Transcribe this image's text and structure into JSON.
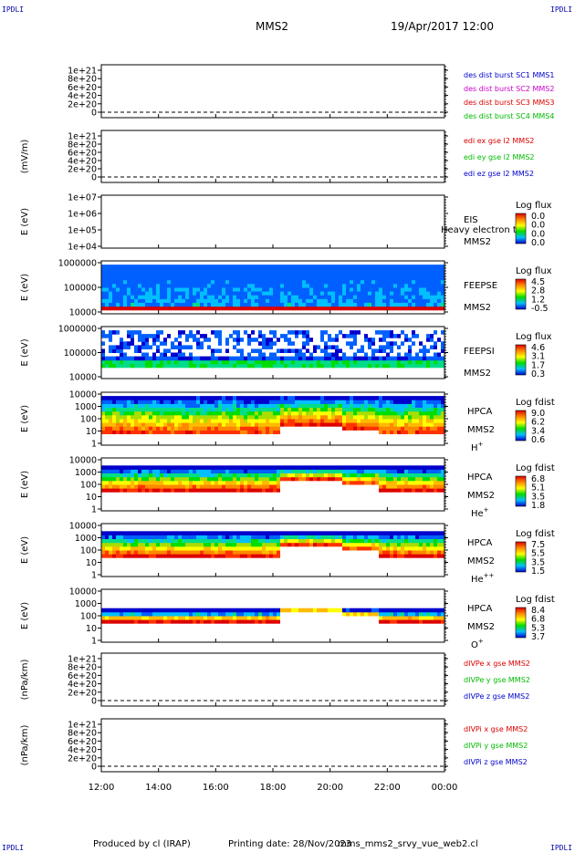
{
  "header": {
    "corner_tl": "IPDLI",
    "corner_tr": "IPDLI",
    "corner_bl": "IPDLI",
    "corner_br": "IPDLI",
    "spacecraft": "MMS2",
    "datetime": "19/Apr/2017 12:00"
  },
  "footer": {
    "produced_by": "Produced by cl (IRAP)",
    "printing_date": "Printing date: 28/Nov/2023",
    "file_name": "mms_mms2_srvy_vue_web2.cl"
  },
  "chart_data": [
    {
      "type": "line",
      "ylabel": "",
      "yticks": [
        "1e+21",
        "8e+20",
        "6e+20",
        "4e+20",
        "2e+20",
        "0"
      ],
      "legend": [
        {
          "label": "des dist burst SC1 MMS1",
          "color": "#0000cc"
        },
        {
          "label": "des dist burst SC2 MMS2",
          "color": "#cc00cc"
        },
        {
          "label": "des dist burst SC3 MMS3",
          "color": "#dd0000"
        },
        {
          "label": "des dist burst SC4 MMS4",
          "color": "#00bb00"
        }
      ]
    },
    {
      "type": "line",
      "ylabel": "(mV/m)",
      "yticks": [
        "1e+21",
        "8e+20",
        "6e+20",
        "4e+20",
        "2e+20",
        "0"
      ],
      "legend": [
        {
          "label": "edi ex gse l2 MMS2",
          "color": "#dd0000"
        },
        {
          "label": "edi ey gse l2 MMS2",
          "color": "#00bb00"
        },
        {
          "label": "edi ez gse l2 MMS2",
          "color": "#0000cc"
        }
      ]
    },
    {
      "type": "heatmap",
      "ylabel": "E (eV)",
      "yticks": [
        "1e+07",
        "1e+06",
        "1e+05",
        "1e+04"
      ],
      "instrument": "EIS",
      "overlay": "Heavy electron tc",
      "spacecraft": "MMS2",
      "cbar_title": "Log flux",
      "cbar_ticks": [
        "0.0",
        "0.0",
        "0.0",
        "0.0"
      ]
    },
    {
      "type": "heatmap",
      "ylabel": "E (eV)",
      "yticks": [
        "1000000",
        "100000",
        "10000"
      ],
      "instrument": "FEEPSE",
      "spacecraft": "MMS2",
      "cbar_title": "Log flux",
      "cbar_ticks": [
        "4.5",
        "2.8",
        "1.2",
        "-0.5"
      ]
    },
    {
      "type": "heatmap",
      "ylabel": "E (eV)",
      "yticks": [
        "1000000",
        "100000",
        "10000"
      ],
      "instrument": "FEEPSI",
      "spacecraft": "MMS2",
      "cbar_title": "Log flux",
      "cbar_ticks": [
        "4.6",
        "3.1",
        "1.7",
        "0.3"
      ]
    },
    {
      "type": "heatmap",
      "ylabel": "E (eV)",
      "yticks": [
        "10000",
        "1000",
        "100",
        "10",
        "1"
      ],
      "instrument": "HPCA",
      "spacecraft": "MMS2",
      "species": "H",
      "species_sup": "+",
      "cbar_title": "Log fdist",
      "cbar_ticks": [
        "9.0",
        "6.2",
        "3.4",
        "0.6"
      ]
    },
    {
      "type": "heatmap",
      "ylabel": "E (eV)",
      "yticks": [
        "10000",
        "1000",
        "100",
        "10",
        "1"
      ],
      "instrument": "HPCA",
      "spacecraft": "MMS2",
      "species": "He",
      "species_sup": "+",
      "cbar_title": "Log fdist",
      "cbar_ticks": [
        "6.8",
        "5.1",
        "3.5",
        "1.8"
      ]
    },
    {
      "type": "heatmap",
      "ylabel": "E (eV)",
      "yticks": [
        "10000",
        "1000",
        "100",
        "10",
        "1"
      ],
      "instrument": "HPCA",
      "spacecraft": "MMS2",
      "species": "He",
      "species_sup": "++",
      "cbar_title": "Log fdist",
      "cbar_ticks": [
        "7.5",
        "5.5",
        "3.5",
        "1.5"
      ]
    },
    {
      "type": "heatmap",
      "ylabel": "E (eV)",
      "yticks": [
        "10000",
        "1000",
        "100",
        "10",
        "1"
      ],
      "instrument": "HPCA",
      "spacecraft": "MMS2",
      "species": "O",
      "species_sup": "+",
      "cbar_title": "Log fdist",
      "cbar_ticks": [
        "8.4",
        "6.8",
        "5.3",
        "3.7"
      ]
    },
    {
      "type": "line",
      "ylabel": "(nPa/km)",
      "yticks": [
        "1e+21",
        "8e+20",
        "6e+20",
        "4e+20",
        "2e+20",
        "0"
      ],
      "legend": [
        {
          "label": "dIVPe x gse MMS2",
          "color": "#dd0000"
        },
        {
          "label": "dIVPe y gse MMS2",
          "color": "#00bb00"
        },
        {
          "label": "dIVPe z gse MMS2",
          "color": "#0000cc"
        }
      ]
    },
    {
      "type": "line",
      "ylabel": "(nPa/km)",
      "yticks": [
        "1e+21",
        "8e+20",
        "6e+20",
        "4e+20",
        "2e+20",
        "0"
      ],
      "legend": [
        {
          "label": "dIVPi x gse MMS2",
          "color": "#dd0000"
        },
        {
          "label": "dIVPi y gse MMS2",
          "color": "#00bb00"
        },
        {
          "label": "dIVPi z gse MMS2",
          "color": "#0000cc"
        }
      ]
    }
  ],
  "time_axis": {
    "ticks": [
      "12:00",
      "14:00",
      "16:00",
      "18:00",
      "20:00",
      "22:00",
      "00:00"
    ]
  }
}
